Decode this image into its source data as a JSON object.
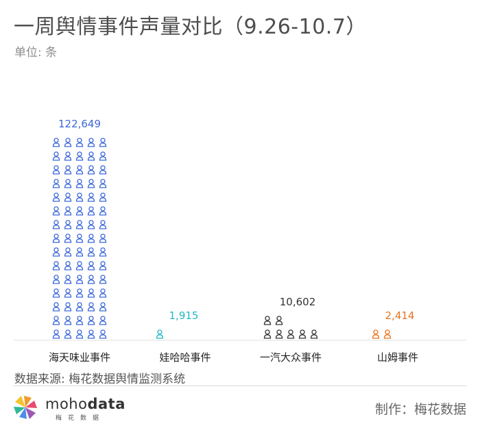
{
  "header": {
    "title": "一周舆情事件声量对比（9.26-10.7）",
    "unit": "单位: 条"
  },
  "chart_data": {
    "type": "bar",
    "style": "pictogram",
    "icon": "person-icon",
    "categories": [
      "海天味业事件",
      "娃哈哈事件",
      "一汽大众事件",
      "山姆事件"
    ],
    "values": [
      122649,
      1915,
      10602,
      2414
    ],
    "value_labels": [
      "122,649",
      "1,915",
      "10,602",
      "2,414"
    ],
    "colors": [
      "#3b67d9",
      "#20b8c2",
      "#333333",
      "#e8731f"
    ],
    "ylabel": "单位: 条",
    "grid": false,
    "legend": "none"
  },
  "footer": {
    "source": "数据来源: 梅花数据舆情监测系统",
    "logo_name_regular": "moho",
    "logo_name_bold": "data",
    "logo_sub": "梅花数据",
    "maker": "制作：梅花数据"
  }
}
